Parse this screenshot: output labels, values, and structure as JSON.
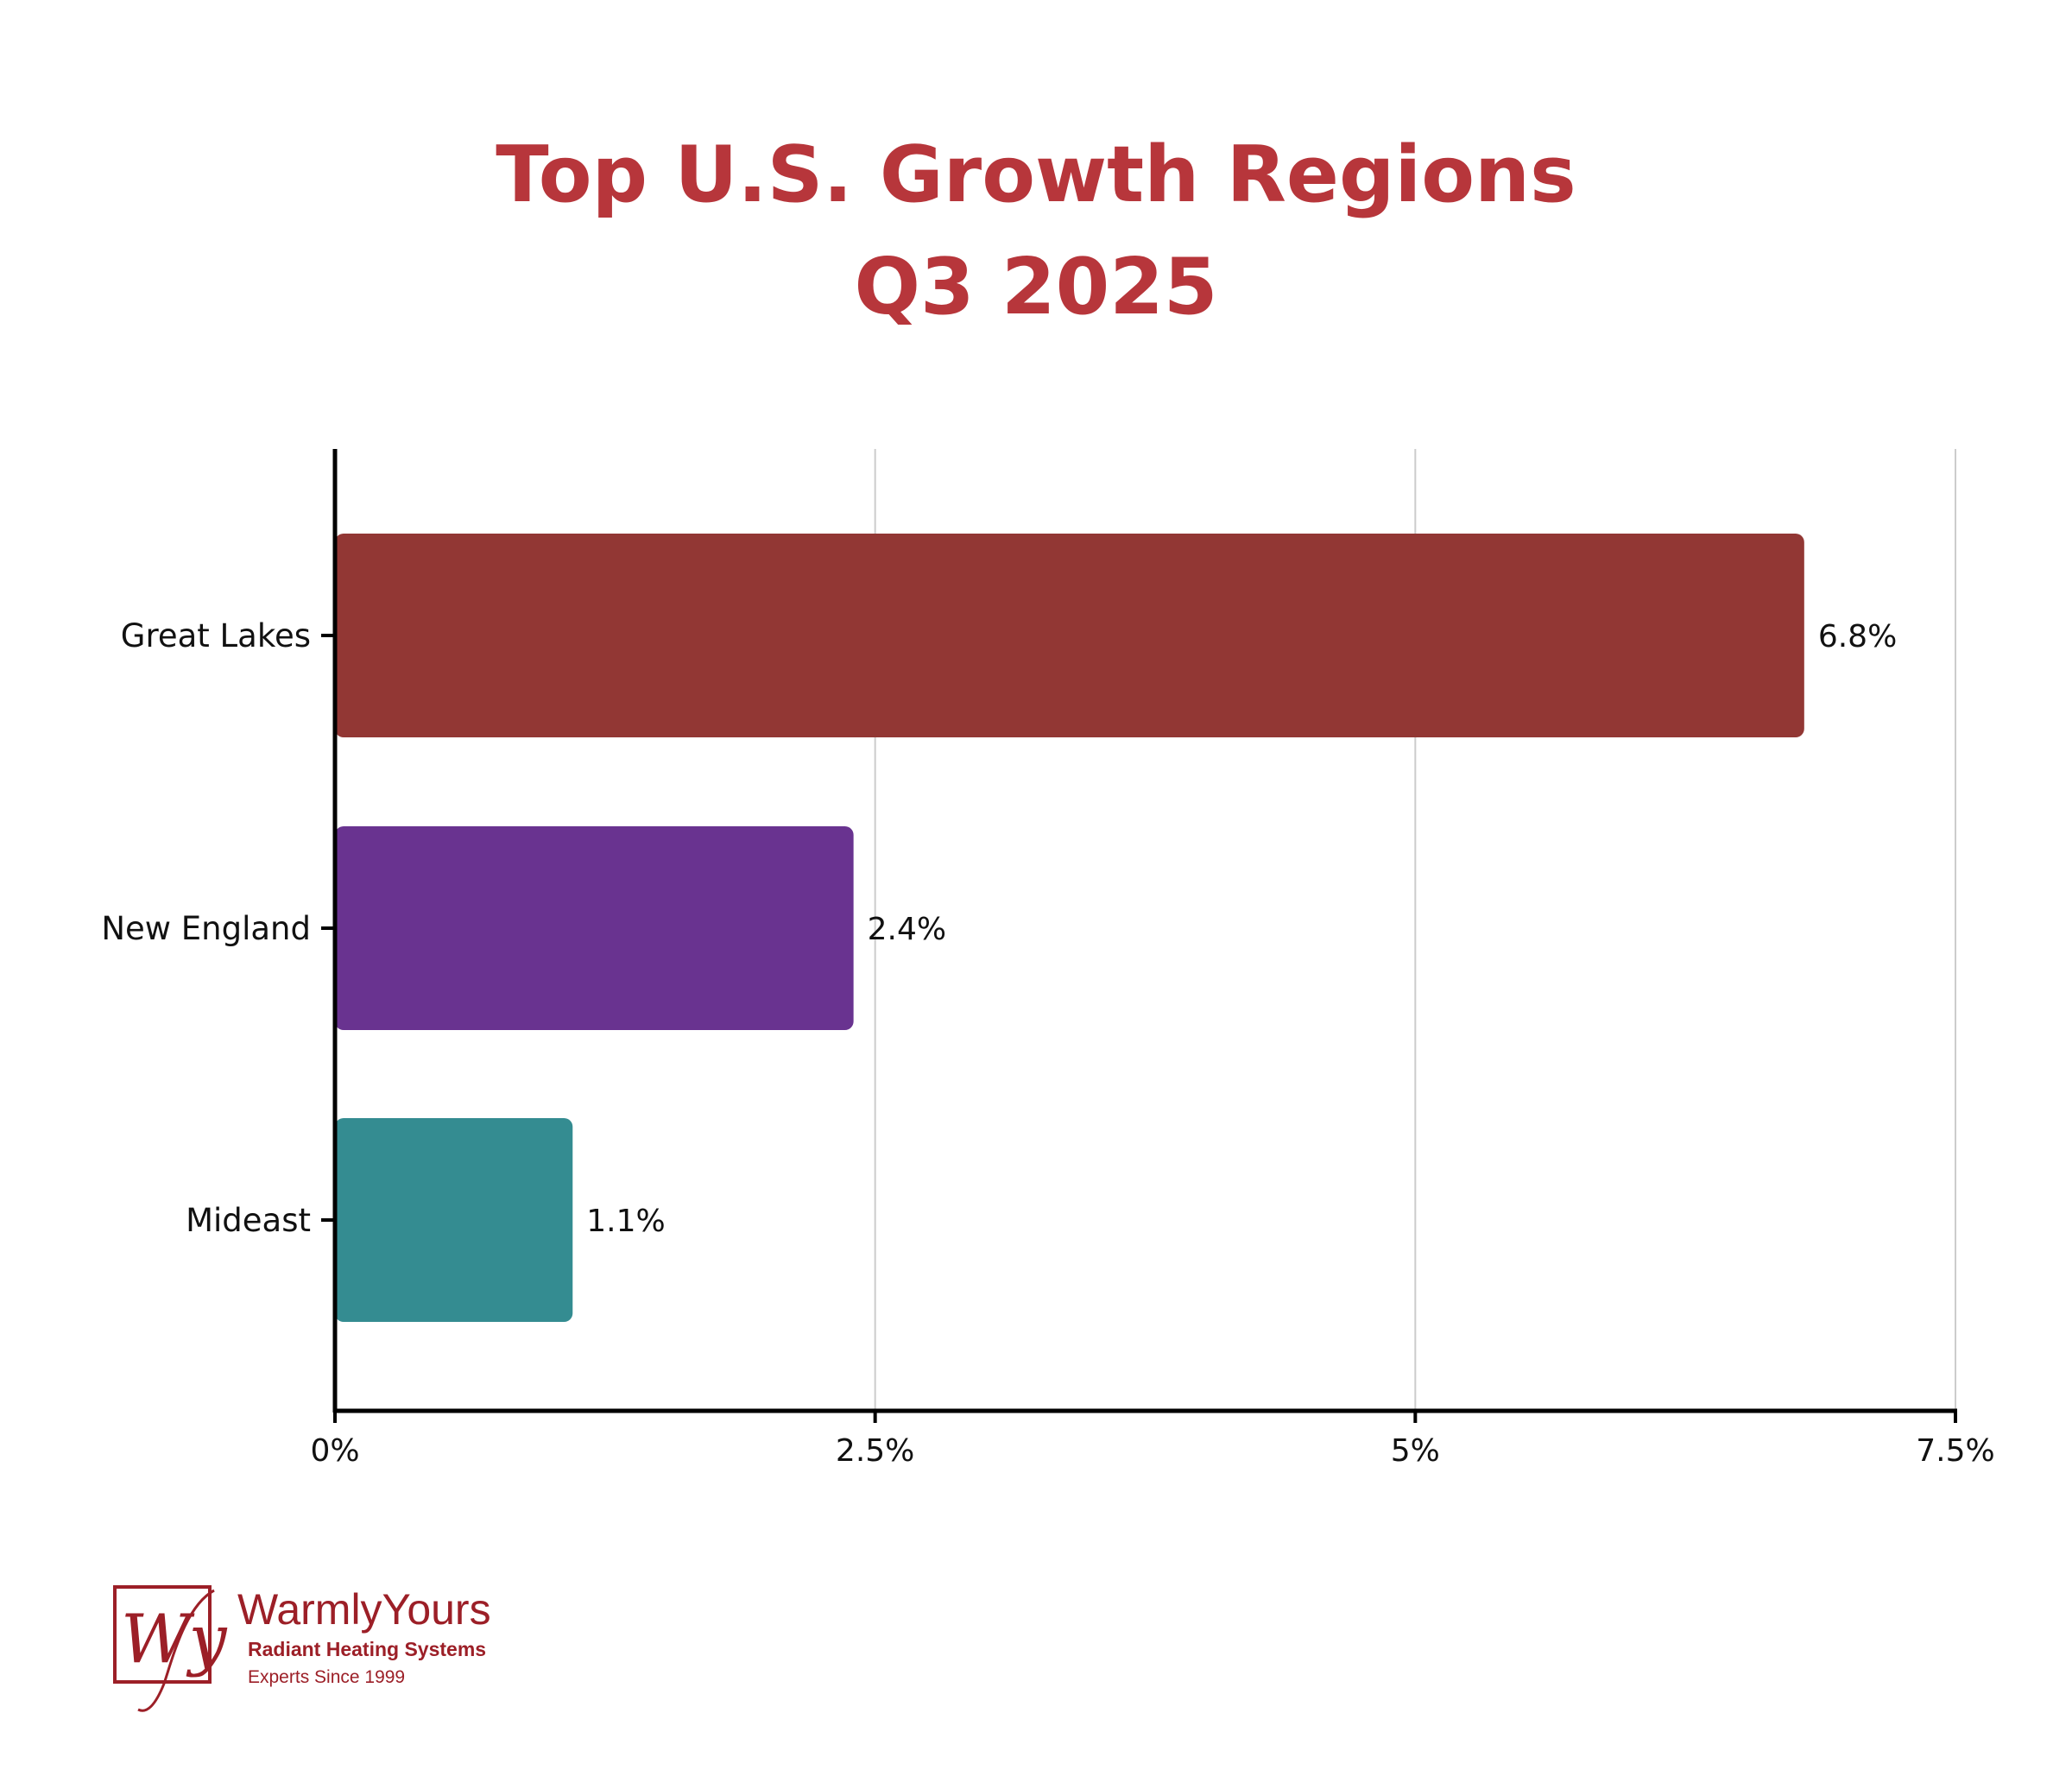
{
  "chart_data": {
    "type": "bar",
    "orientation": "horizontal",
    "title": "Top U.S. Growth Regions",
    "subtitle": "Q3 2025",
    "categories": [
      "Great Lakes",
      "New England",
      "Mideast"
    ],
    "values": [
      6.8,
      2.4,
      1.1
    ],
    "data_labels": [
      "6.8%",
      "2.4%",
      "1.1%"
    ],
    "colors": [
      "#923734",
      "#693390",
      "#348c91"
    ],
    "xlim": [
      0,
      7.5
    ],
    "x_ticks": [
      0,
      2.5,
      5,
      7.5
    ],
    "x_tick_labels": [
      "0%",
      "2.5%",
      "5%",
      "7.5%"
    ],
    "grid": "vertical",
    "title_color": "#b7363b"
  },
  "logo": {
    "brand": "WarmlyYours",
    "tagline": "Radiant Heating Systems",
    "since": "Experts Since 1999",
    "color": "#9c1f27"
  }
}
